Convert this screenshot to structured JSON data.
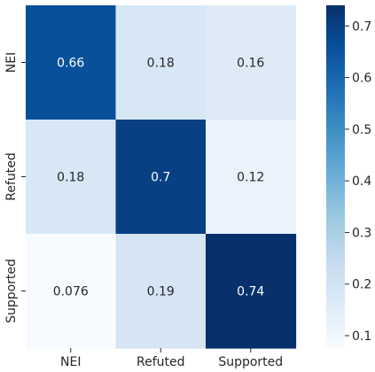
{
  "chart_data": {
    "type": "heatmap",
    "title": "",
    "xlabel": "",
    "ylabel": "",
    "x_categories": [
      "NEI",
      "Refuted",
      "Supported"
    ],
    "y_categories": [
      "NEI",
      "Refuted",
      "Supported"
    ],
    "values": [
      [
        0.66,
        0.18,
        0.16
      ],
      [
        0.18,
        0.7,
        0.12
      ],
      [
        0.076,
        0.19,
        0.74
      ]
    ],
    "cell_labels": [
      [
        "0.66",
        "0.18",
        "0.16"
      ],
      [
        "0.18",
        "0.7",
        "0.12"
      ],
      [
        "0.076",
        "0.19",
        "0.74"
      ]
    ],
    "colormap": "Blues",
    "colorbar": {
      "vmin": 0.076,
      "vmax": 0.74,
      "ticks": [
        0.1,
        0.2,
        0.3,
        0.4,
        0.5,
        0.6,
        0.7
      ],
      "tick_labels": [
        "0.1",
        "0.2",
        "0.3",
        "0.4",
        "0.5",
        "0.6",
        "0.7"
      ]
    },
    "grid": false
  }
}
